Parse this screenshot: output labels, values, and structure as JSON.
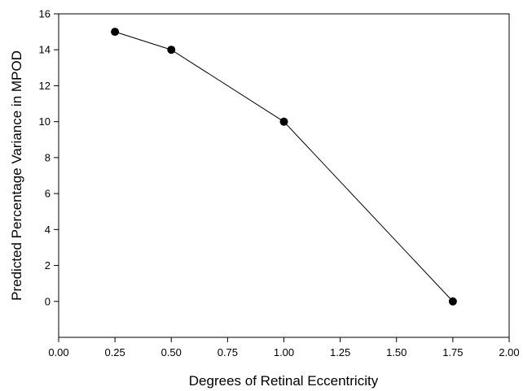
{
  "chart_data": {
    "type": "line",
    "xlabel": "Degrees of Retinal Eccentricity",
    "ylabel": "Predicted Percentage Variance in MPOD",
    "xlim": [
      0,
      2
    ],
    "ylim": [
      -2,
      16
    ],
    "xticks": [
      "0.00",
      "0.25",
      "0.50",
      "0.75",
      "1.00",
      "1.25",
      "1.50",
      "1.75",
      "2.00"
    ],
    "yticks": [
      "0",
      "2",
      "4",
      "6",
      "8",
      "10",
      "12",
      "14",
      "16"
    ],
    "grid": false,
    "series": [
      {
        "x": [
          0.25,
          0.5,
          1.0,
          1.75
        ],
        "y": [
          15,
          14,
          10,
          0
        ],
        "marker": "filled-circle",
        "color": "#000000"
      }
    ]
  }
}
